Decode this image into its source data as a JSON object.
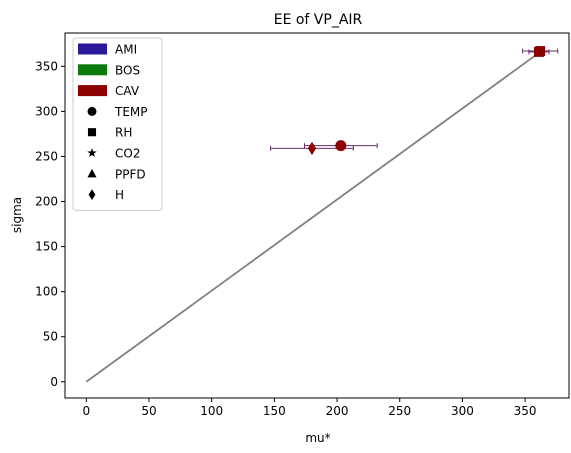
{
  "chart_data": {
    "type": "scatter",
    "title": "EE of VP_AIR",
    "xlabel": "mu*",
    "ylabel": "sigma",
    "xlim": [
      -17,
      385
    ],
    "ylim": [
      -18,
      387
    ],
    "xticks": [
      0,
      50,
      100,
      150,
      200,
      250,
      300,
      350
    ],
    "yticks": [
      0,
      50,
      100,
      150,
      200,
      250,
      300,
      350
    ],
    "grid": false,
    "legend_position": "top-left",
    "reference_line": {
      "x": [
        0,
        362
      ],
      "y": [
        0,
        366
      ],
      "color": "#808080"
    },
    "series": [
      {
        "name": "AMI",
        "color": "#2a1a9a"
      },
      {
        "name": "BOS",
        "color": "#0c7a0c"
      },
      {
        "name": "CAV",
        "color": "#8b0000"
      }
    ],
    "markers": [
      {
        "name": "TEMP",
        "shape": "circle"
      },
      {
        "name": "RH",
        "shape": "square"
      },
      {
        "name": "CO2",
        "shape": "star"
      },
      {
        "name": "PPFD",
        "shape": "triangle"
      },
      {
        "name": "H",
        "shape": "diamond"
      }
    ],
    "points": [
      {
        "series": "CAV",
        "marker": "circle",
        "x": 203,
        "y": 262,
        "xerr": 29
      },
      {
        "series": "CAV",
        "marker": "diamond",
        "x": 180,
        "y": 259,
        "xerr": 33
      },
      {
        "series": "CAV",
        "marker": "square",
        "x": 362,
        "y": 367,
        "xerr": 14
      },
      {
        "series": "CAV",
        "marker": "square",
        "x": 361,
        "y": 366,
        "xerr": 8
      }
    ]
  }
}
